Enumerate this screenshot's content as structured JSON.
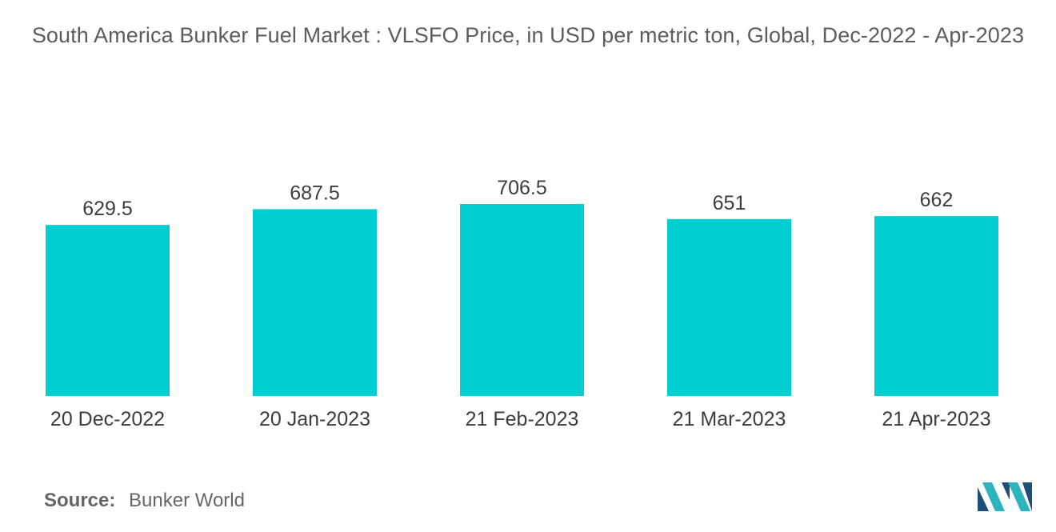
{
  "title": "South America Bunker Fuel Market : VLSFO Price, in USD per metric ton, Global, Dec-2022 - Apr-2023",
  "source": {
    "label": "Source:",
    "value": "Bunker World"
  },
  "colors": {
    "bar": "#00CED1",
    "text": "#3d3d3d",
    "logo_dark": "#1f4e79",
    "logo_light": "#2bb3c0"
  },
  "logo_icon": "mordor-intelligence-logo",
  "chart_data": {
    "type": "bar",
    "categories": [
      "20 Dec-2022",
      "20 Jan-2023",
      "21 Feb-2023",
      "21 Mar-2023",
      "21 Apr-2023"
    ],
    "values": [
      629.5,
      687.5,
      706.5,
      651,
      662
    ],
    "value_labels": [
      "629.5",
      "687.5",
      "706.5",
      "651",
      "662"
    ],
    "title": "South America Bunker Fuel Market : VLSFO Price, in USD per metric ton, Global, Dec-2022 - Apr-2023",
    "xlabel": "",
    "ylabel": "",
    "ylim": [
      0,
      706.5
    ],
    "grid": false,
    "legend": "none"
  }
}
